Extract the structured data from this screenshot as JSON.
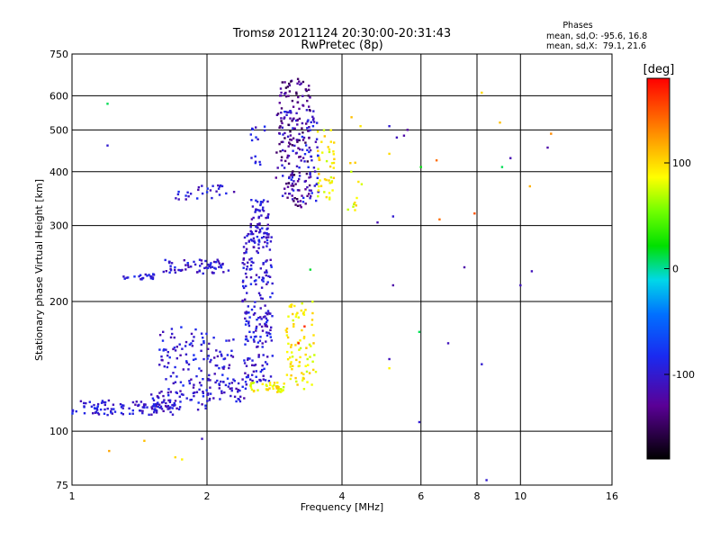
{
  "chart_data": {
    "type": "scatter",
    "title": "Tromsø 20121124 20:30:00-20:31:43",
    "subtitle": "RwPretec (8p)",
    "stats": {
      "heading": "Phases",
      "line_o": "mean, sd,O: -95.6, 16.8",
      "line_x": "mean, sd,X:  79.1, 21.6"
    },
    "xlabel": "Frequency [MHz]",
    "ylabel": "Stationary phase Virtual Height [km]",
    "x_scale": "log",
    "y_scale": "log",
    "xlim": [
      1,
      16
    ],
    "ylim": [
      75,
      750
    ],
    "xticks": [
      1,
      2,
      4,
      6,
      8,
      10,
      16
    ],
    "xtick_labels": [
      "1",
      "2",
      "4",
      "6",
      "8",
      "10",
      "16"
    ],
    "yticks": [
      75,
      100,
      200,
      300,
      400,
      500,
      600,
      750
    ],
    "ytick_labels": [
      "75",
      "100",
      "200",
      "300",
      "400",
      "500",
      "600",
      "750"
    ],
    "grid": true,
    "colorbar": {
      "label": "[deg]",
      "range": [
        -180,
        180
      ],
      "ticks": [
        100,
        0,
        -100
      ],
      "tick_labels": [
        "100",
        "0",
        "-100"
      ]
    },
    "series": [
      {
        "color_phase": -100,
        "clusters": [
          {
            "f": [
              1.0,
              1.7
            ],
            "h": [
              109,
              118
            ],
            "n": 110
          },
          {
            "f": [
              1.5,
              2.05
            ],
            "h": [
              112,
              125
            ],
            "n": 45
          },
          {
            "f": [
              2.0,
              2.45
            ],
            "h": [
              117,
              132
            ],
            "n": 40
          },
          {
            "f": [
              1.55,
              2.0
            ],
            "h": [
              120,
              175
            ],
            "n": 90
          },
          {
            "f": [
              2.0,
              2.3
            ],
            "h": [
              125,
              165
            ],
            "n": 40
          },
          {
            "f": [
              2.4,
              2.8
            ],
            "h": [
              130,
              300
            ],
            "n": 230
          },
          {
            "f": [
              2.5,
              2.75
            ],
            "h": [
              280,
              345
            ],
            "n": 50
          },
          {
            "f": [
              1.3,
              1.55
            ],
            "h": [
              225,
              232
            ],
            "n": 22
          },
          {
            "f": [
              1.6,
              2.25
            ],
            "h": [
              232,
              250
            ],
            "n": 65
          },
          {
            "f": [
              1.7,
              2.3
            ],
            "h": [
              345,
              372
            ],
            "n": 28
          },
          {
            "f": [
              2.5,
              2.7
            ],
            "h": [
              410,
              520
            ],
            "n": 15
          },
          {
            "f": [
              2.9,
              3.55
            ],
            "h": [
              340,
              560
            ],
            "n": 110
          }
        ]
      },
      {
        "color_phase": -135,
        "clusters": [
          {
            "f": [
              2.85,
              3.4
            ],
            "h": [
              330,
              660
            ],
            "n": 140
          }
        ]
      },
      {
        "color_phase": 90,
        "clusters": [
          {
            "f": [
              2.5,
              3.0
            ],
            "h": [
              123,
              130
            ],
            "n": 40
          },
          {
            "f": [
              3.0,
              3.5
            ],
            "h": [
              125,
              200
            ],
            "n": 85
          },
          {
            "f": [
              3.5,
              3.85
            ],
            "h": [
              345,
              500
            ],
            "n": 45
          },
          {
            "f": [
              4.1,
              4.45
            ],
            "h": [
              310,
              420
            ],
            "n": 12
          }
        ]
      }
    ],
    "isolated_points": [
      {
        "f": 1.2,
        "h": 575,
        "phase": 10
      },
      {
        "f": 1.2,
        "h": 460,
        "phase": -100
      },
      {
        "f": 1.21,
        "h": 90,
        "phase": 120
      },
      {
        "f": 1.7,
        "h": 87,
        "phase": 100
      },
      {
        "f": 1.76,
        "h": 86,
        "phase": 90
      },
      {
        "f": 1.95,
        "h": 96,
        "phase": -110
      },
      {
        "f": 1.45,
        "h": 95,
        "phase": 110
      },
      {
        "f": 4.2,
        "h": 535,
        "phase": 110
      },
      {
        "f": 4.4,
        "h": 510,
        "phase": 95
      },
      {
        "f": 5.1,
        "h": 510,
        "phase": -100
      },
      {
        "f": 5.3,
        "h": 480,
        "phase": -110
      },
      {
        "f": 5.5,
        "h": 485,
        "phase": -120
      },
      {
        "f": 5.6,
        "h": 500,
        "phase": -125
      },
      {
        "f": 6.0,
        "h": 410,
        "phase": 20
      },
      {
        "f": 5.1,
        "h": 440,
        "phase": 100
      },
      {
        "f": 5.2,
        "h": 218,
        "phase": -120
      },
      {
        "f": 5.2,
        "h": 315,
        "phase": -100
      },
      {
        "f": 4.8,
        "h": 305,
        "phase": -115
      },
      {
        "f": 6.6,
        "h": 310,
        "phase": 140
      },
      {
        "f": 6.5,
        "h": 425,
        "phase": 140
      },
      {
        "f": 7.5,
        "h": 240,
        "phase": -120
      },
      {
        "f": 7.9,
        "h": 320,
        "phase": 150
      },
      {
        "f": 8.2,
        "h": 610,
        "phase": 100
      },
      {
        "f": 9.5,
        "h": 430,
        "phase": -115
      },
      {
        "f": 9.0,
        "h": 520,
        "phase": 110
      },
      {
        "f": 9.1,
        "h": 410,
        "phase": 10
      },
      {
        "f": 10.0,
        "h": 218,
        "phase": -110
      },
      {
        "f": 10.6,
        "h": 235,
        "phase": -110
      },
      {
        "f": 10.5,
        "h": 370,
        "phase": 115
      },
      {
        "f": 11.7,
        "h": 490,
        "phase": 130
      },
      {
        "f": 11.5,
        "h": 455,
        "phase": -120
      },
      {
        "f": 5.95,
        "h": 170,
        "phase": 10
      },
      {
        "f": 5.95,
        "h": 105,
        "phase": -100
      },
      {
        "f": 6.9,
        "h": 160,
        "phase": -110
      },
      {
        "f": 5.1,
        "h": 140,
        "phase": 90
      },
      {
        "f": 5.1,
        "h": 147,
        "phase": -110
      },
      {
        "f": 8.4,
        "h": 77,
        "phase": -100
      },
      {
        "f": 8.2,
        "h": 143,
        "phase": -100
      },
      {
        "f": 3.2,
        "h": 160,
        "phase": 170
      },
      {
        "f": 3.3,
        "h": 175,
        "phase": 165
      },
      {
        "f": 3.4,
        "h": 237,
        "phase": 15
      }
    ]
  }
}
